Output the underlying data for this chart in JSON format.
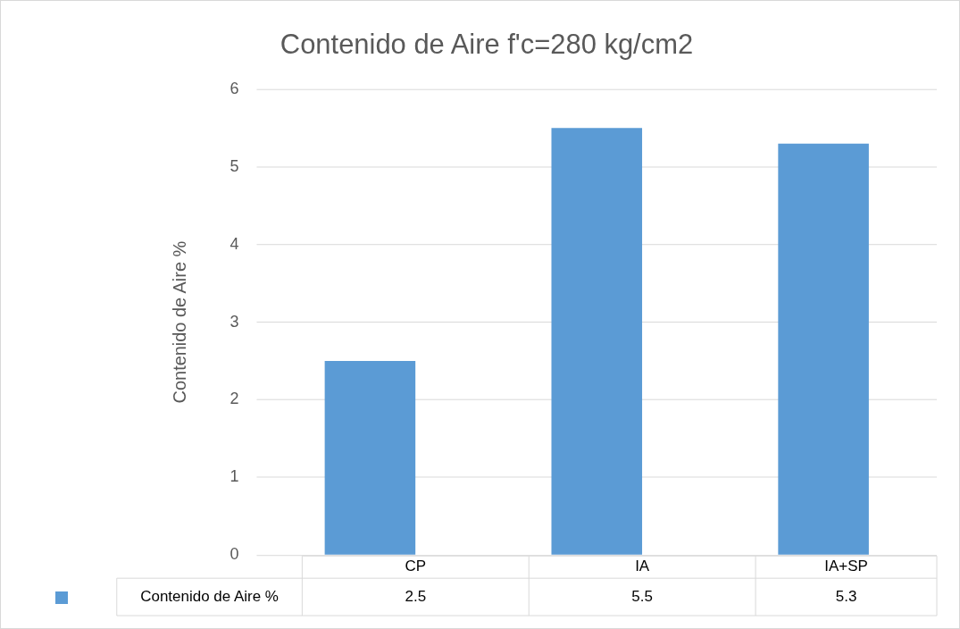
{
  "chart_data": {
    "type": "bar",
    "title": "Contenido de Aire f'c=280 kg/cm2",
    "ylabel": "Contenido de Aire %",
    "categories": [
      "CP",
      "IA",
      "IA+SP"
    ],
    "series": [
      {
        "name": "Contenido de Aire %",
        "color": "#5b9bd5",
        "values": [
          2.5,
          5.5,
          5.3
        ]
      }
    ],
    "ylim": [
      0,
      6
    ],
    "yticks": [
      0,
      1,
      2,
      3,
      4,
      5,
      6
    ],
    "grid": "y",
    "legend": "bottom left",
    "data_labels": true
  }
}
